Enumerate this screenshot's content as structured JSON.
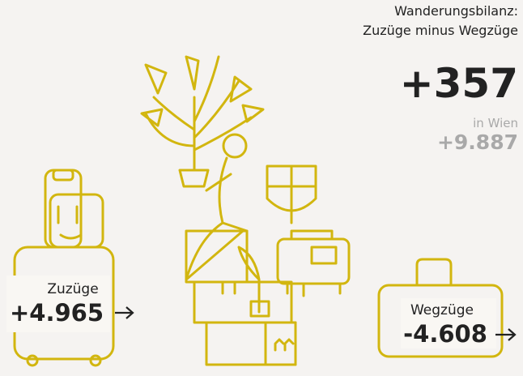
{
  "header": {
    "title_line1": "Wanderungsbilanz:",
    "title_line2": "Zuzüge minus Wegzüge",
    "value": "+357",
    "vienna_label": "in Wien",
    "vienna_value": "+9.887"
  },
  "arrivals": {
    "label": "Zuzüge",
    "value": "+4.965"
  },
  "departures": {
    "label": "Wegzüge",
    "value": "-4.608"
  }
}
